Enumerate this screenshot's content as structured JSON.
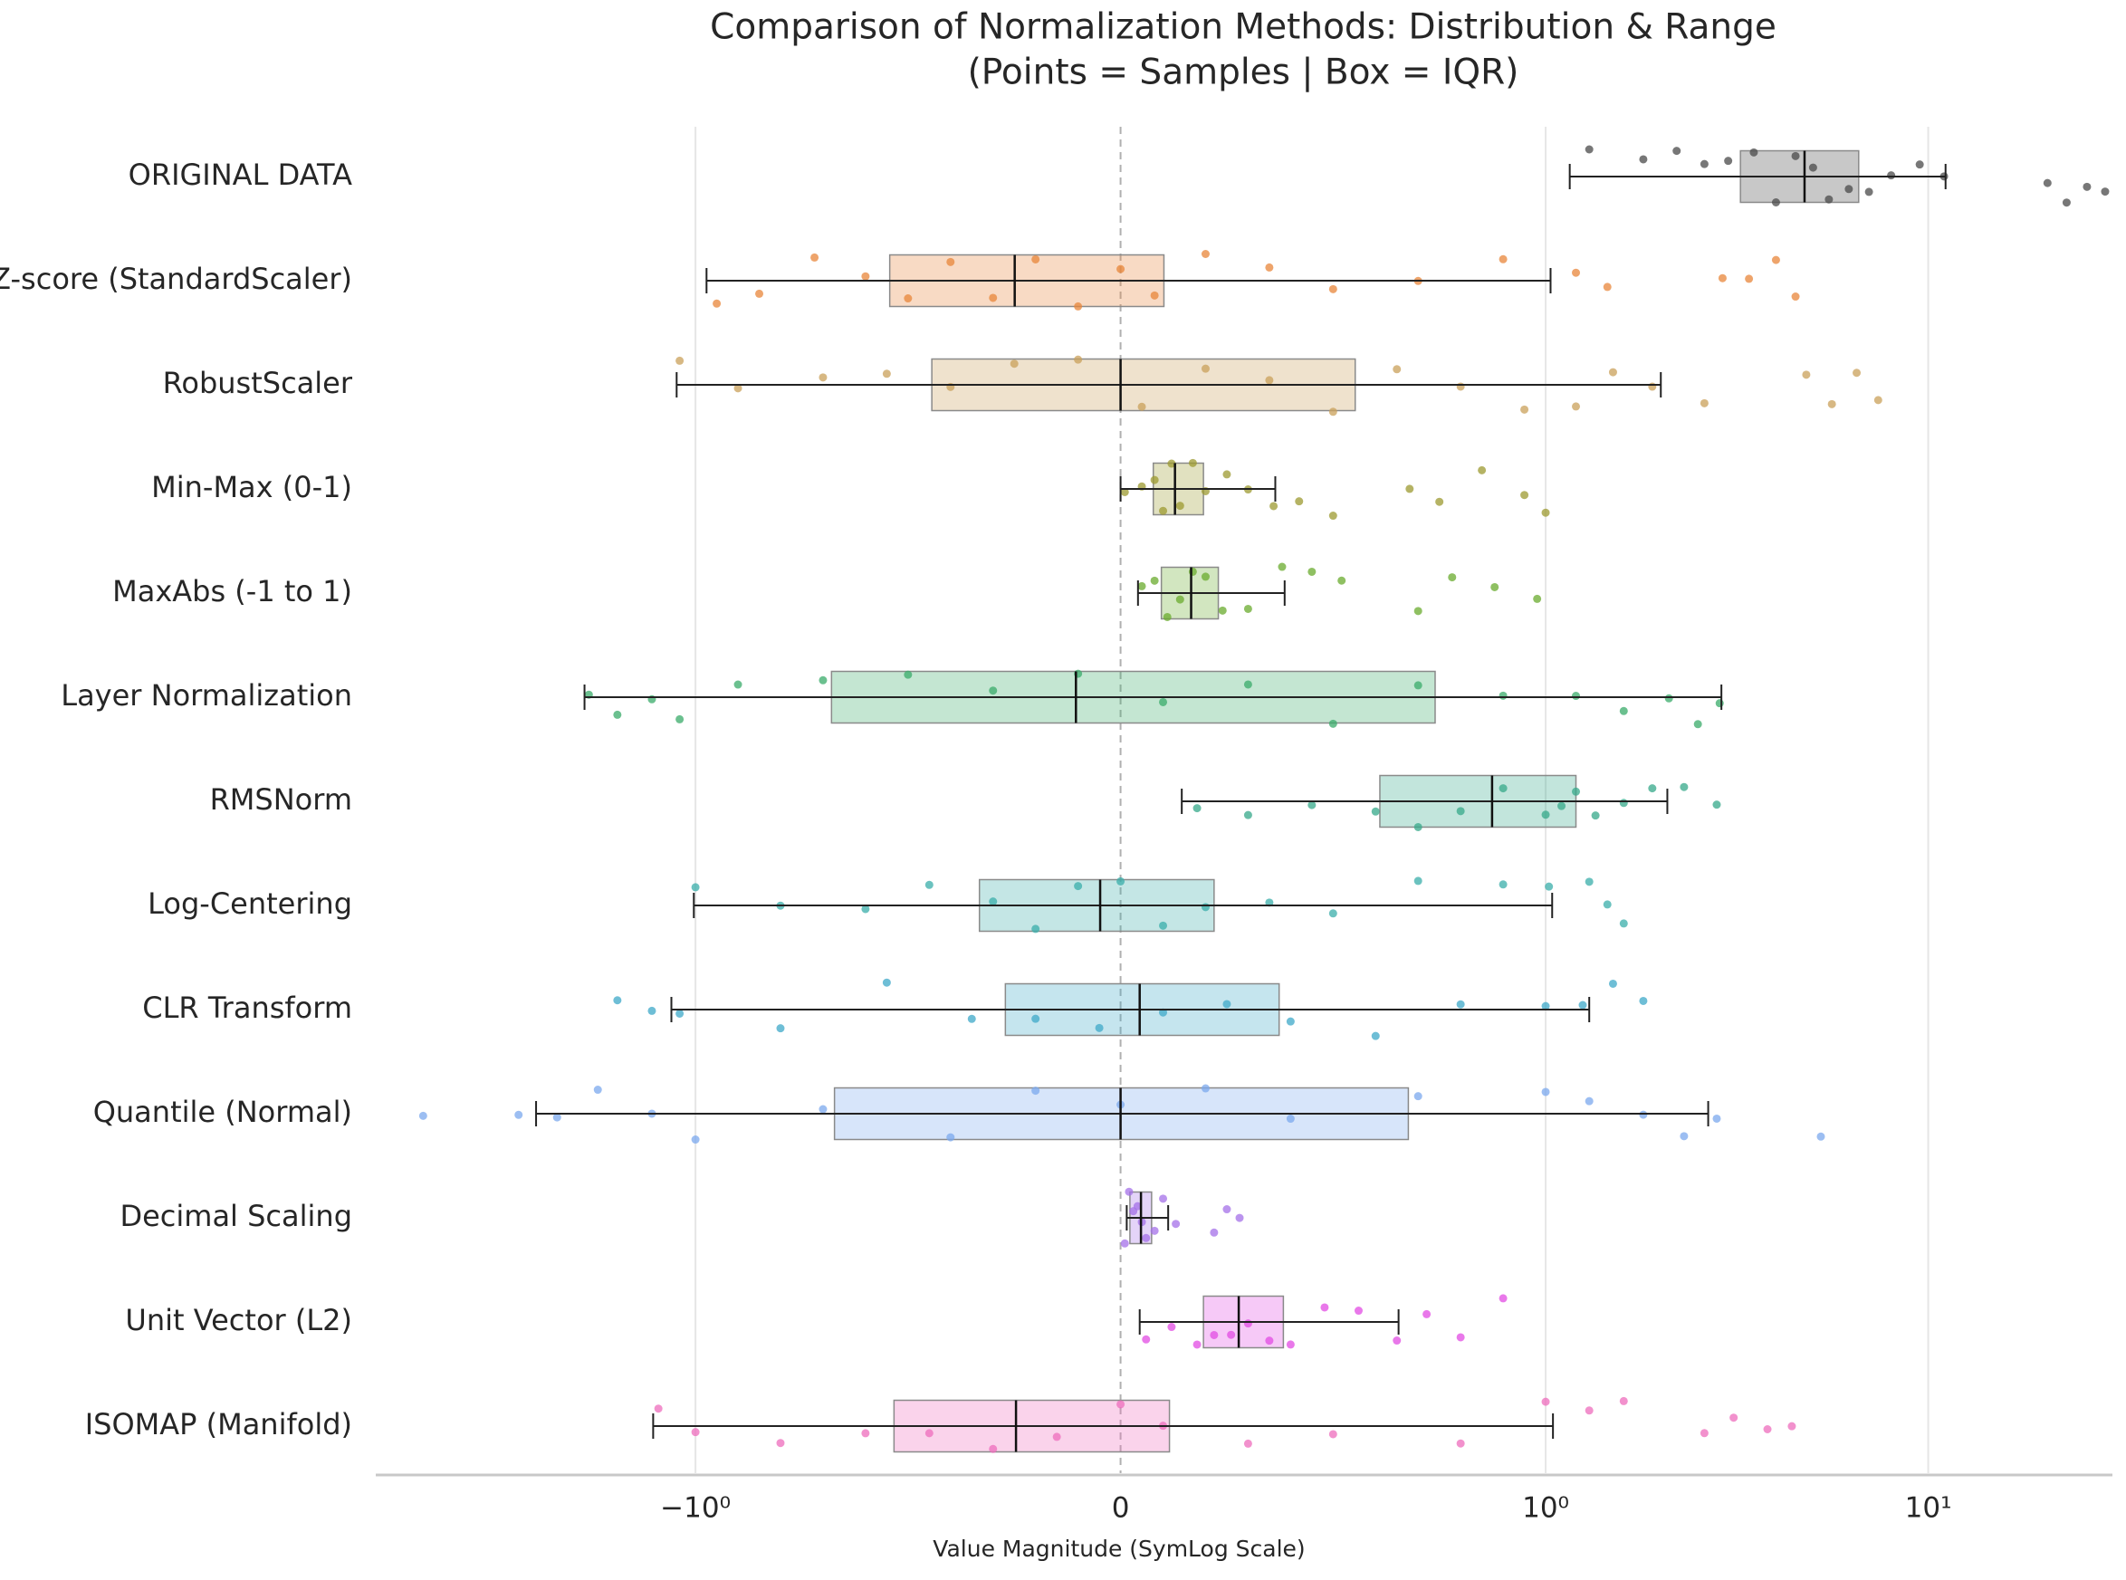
{
  "chart_data": {
    "type": "box",
    "title": "Comparison of Normalization Methods: Distribution & Range",
    "subtitle": "(Points = Samples | Box = IQR)",
    "x_label": "Value Magnitude (SymLog Scale)",
    "xscale": "symlog",
    "xlim": [
      -6.85,
      30.3
    ],
    "xticks": [
      {
        "value": -1,
        "label": "−10⁰"
      },
      0,
      {
        "value": 1,
        "label": "10⁰"
      },
      {
        "value": 10,
        "label": "10¹"
      }
    ],
    "grid": true,
    "categories": [
      "ORIGINAL DATA",
      "Z-score (StandardScaler)",
      "RobustScaler",
      "Min-Max (0-1)",
      "MaxAbs (-1 to 1)",
      "Layer Normalization",
      "RMSNorm",
      "Log-Centering",
      "CLR Transform",
      "Quantile (Normal)",
      "Decimal Scaling",
      "Unit Vector (L2)",
      "ISOMAP (Manifold)"
    ],
    "boxes": [
      {
        "color": "#4a4a4a",
        "whislo": 1.156,
        "q1": 3.23,
        "med": 4.75,
        "q3": 6.58,
        "whishi": 11.1,
        "samples": [
          1.3,
          1.8,
          2.2,
          2.6,
          3.0,
          3.5,
          4.0,
          4.5,
          5.0,
          5.5,
          6.2,
          7.0,
          8.0,
          9.5,
          11.0,
          20.5,
          23,
          26,
          29
        ]
      },
      {
        "color": "#e8853a",
        "whislo": -0.974,
        "q1": -0.543,
        "med": -0.249,
        "q3": 0.102,
        "whishi": 1.03,
        "samples": [
          -0.95,
          -0.85,
          -0.72,
          -0.6,
          -0.5,
          -0.4,
          -0.3,
          -0.2,
          -0.1,
          0,
          0.08,
          0.2,
          0.35,
          0.5,
          0.7,
          0.9,
          1.2,
          1.45,
          2.9,
          3.4,
          4.0,
          4.5
        ]
      },
      {
        "color": "#c9a05a",
        "whislo": -1.12,
        "q1": -0.444,
        "med": 0,
        "q3": 0.552,
        "whishi": 2.0,
        "samples": [
          -1.1,
          -0.9,
          -0.7,
          -0.55,
          -0.4,
          -0.25,
          -0.1,
          0.05,
          0.2,
          0.35,
          0.5,
          0.65,
          0.8,
          0.95,
          1.2,
          1.5,
          1.9,
          2.6,
          4.8,
          5.6,
          6.5,
          7.4
        ]
      },
      {
        "color": "#9c9a30",
        "whislo": 0,
        "q1": 0.077,
        "med": 0.128,
        "q3": 0.195,
        "whishi": 0.364,
        "samples": [
          0.01,
          0.05,
          0.08,
          0.1,
          0.12,
          0.14,
          0.17,
          0.2,
          0.25,
          0.3,
          0.36,
          0.42,
          0.5,
          0.68,
          0.75,
          0.85,
          0.95,
          1.0
        ]
      },
      {
        "color": "#6aab2e",
        "whislo": 0.041,
        "q1": 0.096,
        "med": 0.166,
        "q3": 0.23,
        "whishi": 0.386,
        "samples": [
          0.05,
          0.08,
          0.11,
          0.14,
          0.17,
          0.2,
          0.24,
          0.3,
          0.38,
          0.45,
          0.52,
          0.7,
          0.78,
          0.88,
          0.98
        ]
      },
      {
        "color": "#3aab6a",
        "whislo": -1.95,
        "q1": -0.68,
        "med": -0.105,
        "q3": 0.74,
        "whishi": 2.88,
        "samples": [
          -1.9,
          -1.6,
          -1.3,
          -1.1,
          -0.9,
          -0.7,
          -0.5,
          -0.3,
          -0.1,
          0.1,
          0.3,
          0.5,
          0.7,
          0.9,
          1.2,
          1.6,
          2.1,
          2.5,
          2.85
        ]
      },
      {
        "color": "#36a88a",
        "whislo": 0.144,
        "q1": 0.61,
        "med": 0.874,
        "q3": 1.2,
        "whishi": 2.08,
        "samples": [
          0.18,
          0.3,
          0.45,
          0.6,
          0.7,
          0.8,
          0.9,
          1.0,
          1.1,
          1.2,
          1.35,
          1.6,
          1.9,
          2.3,
          2.8
        ]
      },
      {
        "color": "#3aadaa",
        "whislo": -1.01,
        "q1": -0.332,
        "med": -0.048,
        "q3": 0.22,
        "whishi": 1.04,
        "samples": [
          -1.0,
          -0.8,
          -0.6,
          -0.45,
          -0.3,
          -0.2,
          -0.1,
          0,
          0.1,
          0.2,
          0.35,
          0.5,
          0.7,
          0.9,
          1.02,
          1.3,
          1.45,
          1.6
        ]
      },
      {
        "color": "#3ea8c8",
        "whislo": -1.156,
        "q1": -0.271,
        "med": 0.045,
        "q3": 0.373,
        "whishi": 1.3,
        "samples": [
          -1.6,
          -1.3,
          -1.1,
          -0.8,
          -0.55,
          -0.35,
          -0.2,
          -0.05,
          0.1,
          0.25,
          0.4,
          0.6,
          0.8,
          1.0,
          1.25,
          1.5,
          1.8
        ]
      },
      {
        "color": "#7ba8ee",
        "whislo": -2.61,
        "q1": -0.673,
        "med": 0,
        "q3": 0.677,
        "whishi": 2.66,
        "samples": [
          -5.15,
          -2.9,
          -2.3,
          -1.8,
          -1.3,
          -1.0,
          -0.7,
          -0.4,
          -0.2,
          0,
          0.2,
          0.4,
          0.7,
          1.0,
          1.3,
          1.8,
          2.3,
          2.8,
          5.24
        ]
      },
      {
        "color": "#a470e8",
        "whislo": 0.0145,
        "q1": 0.022,
        "med": 0.048,
        "q3": 0.073,
        "whishi": 0.112,
        "samples": [
          0.01,
          0.02,
          0.03,
          0.04,
          0.05,
          0.06,
          0.08,
          0.1,
          0.13,
          0.22,
          0.25,
          0.28
        ]
      },
      {
        "color": "#e14be3",
        "whislo": 0.045,
        "q1": 0.195,
        "med": 0.278,
        "q3": 0.383,
        "whishi": 0.654,
        "samples": [
          0.06,
          0.12,
          0.18,
          0.22,
          0.26,
          0.3,
          0.35,
          0.4,
          0.48,
          0.56,
          0.65,
          0.72,
          0.8,
          0.9
        ]
      },
      {
        "color": "#ee6cbc",
        "whislo": -1.29,
        "q1": -0.533,
        "med": -0.246,
        "q3": 0.115,
        "whishi": 1.045,
        "samples": [
          -1.25,
          -1.0,
          -0.8,
          -0.6,
          -0.45,
          -0.3,
          -0.15,
          0,
          0.1,
          0.3,
          0.5,
          0.8,
          1.0,
          1.3,
          1.6,
          2.6,
          3.1,
          3.8,
          4.4
        ]
      }
    ]
  }
}
